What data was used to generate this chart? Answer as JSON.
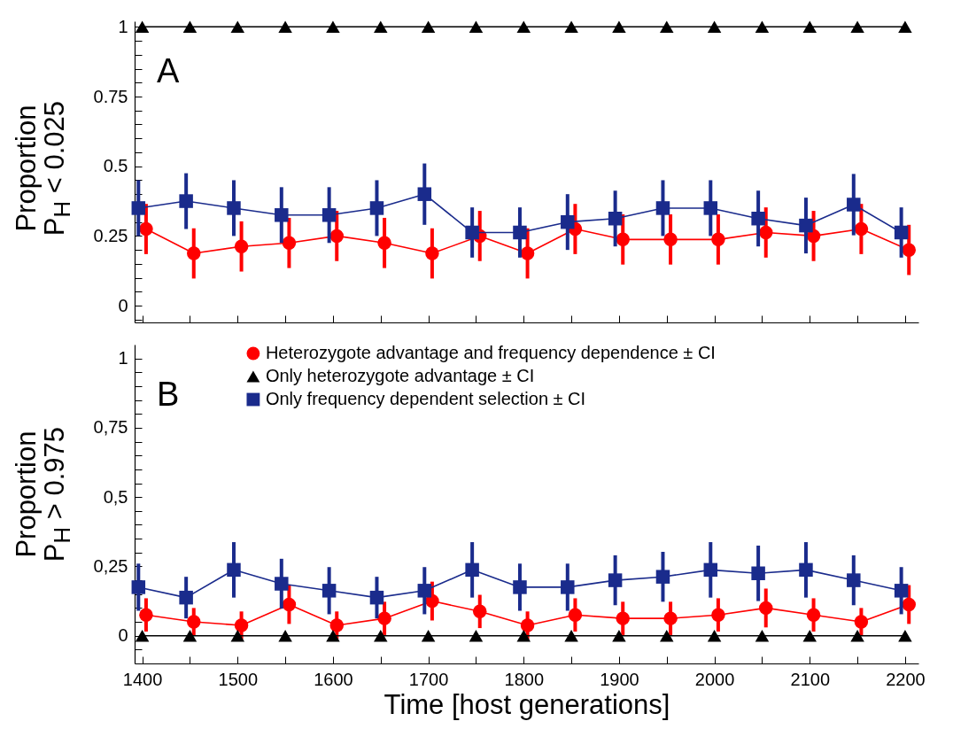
{
  "chart_data": [
    {
      "type": "line",
      "ylabel": "Proportion P$_{H}$ < 0.025",
      "annotations": [
        "A"
      ],
      "xlim": [
        1392,
        2214
      ],
      "ylim": [
        -0.06,
        1.02
      ],
      "xticks": [
        1400,
        {
          "value": 1450,
          "label": null
        },
        1500,
        {
          "value": 1550,
          "label": null
        },
        1600,
        {
          "value": 1650,
          "label": null
        },
        1700,
        {
          "value": 1750,
          "label": null
        },
        1800,
        {
          "value": 1850,
          "label": null
        },
        1900,
        {
          "value": 1950,
          "label": null
        },
        2000,
        {
          "value": 2050,
          "label": null
        },
        2100,
        {
          "value": 2150,
          "label": null
        },
        2200
      ],
      "yticks": [
        {
          "value": -0.05,
          "label": null
        },
        0,
        {
          "value": 0.05,
          "label": null
        },
        {
          "value": 0.1,
          "label": null
        },
        {
          "value": 0.15,
          "label": null
        },
        {
          "value": 0.2,
          "label": null
        },
        0.25,
        {
          "value": 0.3,
          "label": null
        },
        {
          "value": 0.35,
          "label": null
        },
        {
          "value": 0.4,
          "label": null
        },
        {
          "value": 0.45,
          "label": null
        },
        0.5,
        {
          "value": 0.55,
          "label": null
        },
        {
          "value": 0.6,
          "label": null
        },
        {
          "value": 0.65,
          "label": null
        },
        {
          "value": 0.7,
          "label": null
        },
        0.75,
        {
          "value": 0.8,
          "label": null
        },
        {
          "value": 0.85,
          "label": null
        },
        {
          "value": 0.9,
          "label": null
        },
        {
          "value": 0.95,
          "label": null
        },
        1
      ],
      "tick_labels": "y",
      "grid": false,
      "legend": false,
      "series": [
        {
          "color": "#ff0000",
          "marker": "circle",
          "x": [
            1404,
            1454,
            1504,
            1554,
            1604,
            1654,
            1704,
            1754,
            1804,
            1854,
            1904,
            1954,
            2004,
            2054,
            2104,
            2154,
            2204
          ],
          "values": [
            0.275,
            0.1875,
            0.2125,
            0.225,
            0.25,
            0.225,
            0.1875,
            0.25,
            0.1875,
            0.275,
            0.2375,
            0.2375,
            0.2375,
            0.2625,
            0.25,
            0.275,
            0.2
          ],
          "errors": [
            0.09,
            0.09,
            0.09,
            0.09,
            0.09,
            0.09,
            0.09,
            0.09,
            0.09,
            0.09,
            0.09,
            0.09,
            0.09,
            0.09,
            0.09,
            0.09,
            0.09
          ]
        },
        {
          "color": "#000000",
          "marker": "triangle",
          "x": [
            1400,
            1450,
            1500,
            1550,
            1600,
            1650,
            1700,
            1750,
            1800,
            1850,
            1900,
            1950,
            2000,
            2050,
            2100,
            2150,
            2200
          ],
          "values": [
            1,
            1,
            1,
            1,
            1,
            1,
            1,
            1,
            1,
            1,
            1,
            1,
            1,
            1,
            1,
            1,
            1
          ]
        },
        {
          "color": "#1a2b8c",
          "marker": "square",
          "x": [
            1396,
            1446,
            1496,
            1546,
            1596,
            1646,
            1696,
            1746,
            1796,
            1846,
            1896,
            1946,
            1996,
            2046,
            2096,
            2146,
            2196
          ],
          "values": [
            0.35,
            0.375,
            0.35,
            0.325,
            0.325,
            0.35,
            0.4,
            0.2625,
            0.2625,
            0.3,
            0.3125,
            0.35,
            0.35,
            0.3125,
            0.2875,
            0.3625,
            0.2625
          ],
          "errors": [
            0.1,
            0.1,
            0.1,
            0.1,
            0.1,
            0.1,
            0.11,
            0.09,
            0.09,
            0.1,
            0.1,
            0.1,
            0.1,
            0.1,
            0.1,
            0.11,
            0.09
          ]
        }
      ]
    },
    {
      "type": "line",
      "xlabel": "Time [host generations]",
      "ylabel": "Proportion P$_{H}$ > 0.975",
      "annotations": [
        "B"
      ],
      "xlim": [
        1392,
        2214
      ],
      "ylim": [
        -0.1,
        1.05
      ],
      "xticks": [
        1400,
        {
          "value": 1450,
          "label": null
        },
        1500,
        {
          "value": 1550,
          "label": null
        },
        1600,
        {
          "value": 1650,
          "label": null
        },
        1700,
        {
          "value": 1750,
          "label": null
        },
        1800,
        {
          "value": 1850,
          "label": null
        },
        1900,
        {
          "value": 1950,
          "label": null
        },
        2000,
        {
          "value": 2050,
          "label": null
        },
        2100,
        {
          "value": 2150,
          "label": null
        },
        2200
      ],
      "yticks": [
        {
          "value": -0.05,
          "label": null
        },
        {
          "value": 0,
          "label": "0"
        },
        {
          "value": 0.05,
          "label": null
        },
        {
          "value": 0.1,
          "label": null
        },
        {
          "value": 0.15,
          "label": null
        },
        {
          "value": 0.2,
          "label": null
        },
        {
          "value": 0.25,
          "label": "0,25"
        },
        {
          "value": 0.3,
          "label": null
        },
        {
          "value": 0.35,
          "label": null
        },
        {
          "value": 0.4,
          "label": null
        },
        {
          "value": 0.45,
          "label": null
        },
        {
          "value": 0.5,
          "label": "0,5"
        },
        {
          "value": 0.55,
          "label": null
        },
        {
          "value": 0.6,
          "label": null
        },
        {
          "value": 0.65,
          "label": null
        },
        {
          "value": 0.7,
          "label": null
        },
        {
          "value": 0.75,
          "label": "0,75"
        },
        {
          "value": 0.8,
          "label": null
        },
        {
          "value": 0.85,
          "label": null
        },
        {
          "value": 0.9,
          "label": null
        },
        {
          "value": 0.95,
          "label": null
        },
        {
          "value": 1,
          "label": "1"
        }
      ],
      "grid": false,
      "legend": "top",
      "series": [
        {
          "name": "Heterozygote advantage and frequency dependence ± CI",
          "color": "#ff0000",
          "marker": "circle",
          "x": [
            1404,
            1454,
            1504,
            1554,
            1604,
            1654,
            1704,
            1754,
            1804,
            1854,
            1904,
            1954,
            2004,
            2054,
            2104,
            2154,
            2204
          ],
          "values": [
            0.075,
            0.05,
            0.0375,
            0.1125,
            0.0375,
            0.0625,
            0.125,
            0.0875,
            0.0375,
            0.075,
            0.0625,
            0.0625,
            0.075,
            0.1,
            0.075,
            0.05,
            0.1125
          ],
          "errors": [
            0.06,
            0.05,
            0.05,
            0.07,
            0.05,
            0.06,
            0.07,
            0.06,
            0.05,
            0.06,
            0.06,
            0.06,
            0.06,
            0.07,
            0.06,
            0.05,
            0.07
          ]
        },
        {
          "name": "Only heterozygote advantage ± CI",
          "color": "#000000",
          "marker": "triangle",
          "x": [
            1400,
            1450,
            1500,
            1550,
            1600,
            1650,
            1700,
            1750,
            1800,
            1850,
            1900,
            1950,
            2000,
            2050,
            2100,
            2150,
            2200
          ],
          "values": [
            0,
            0,
            0,
            0,
            0,
            0,
            0,
            0,
            0,
            0,
            0,
            0,
            0,
            0,
            0,
            0,
            0
          ]
        },
        {
          "name": "Only frequency dependent selection ± CI",
          "color": "#1a2b8c",
          "marker": "square",
          "x": [
            1396,
            1446,
            1496,
            1546,
            1596,
            1646,
            1696,
            1746,
            1796,
            1846,
            1896,
            1946,
            1996,
            2046,
            2096,
            2146,
            2196
          ],
          "values": [
            0.175,
            0.1375,
            0.2375,
            0.1875,
            0.1625,
            0.1375,
            0.1625,
            0.2375,
            0.175,
            0.175,
            0.2,
            0.2125,
            0.2375,
            0.225,
            0.2375,
            0.2,
            0.1625
          ],
          "errors": [
            0.085,
            0.075,
            0.1,
            0.09,
            0.085,
            0.075,
            0.085,
            0.1,
            0.085,
            0.085,
            0.09,
            0.09,
            0.1,
            0.1,
            0.1,
            0.09,
            0.085
          ]
        }
      ]
    }
  ]
}
